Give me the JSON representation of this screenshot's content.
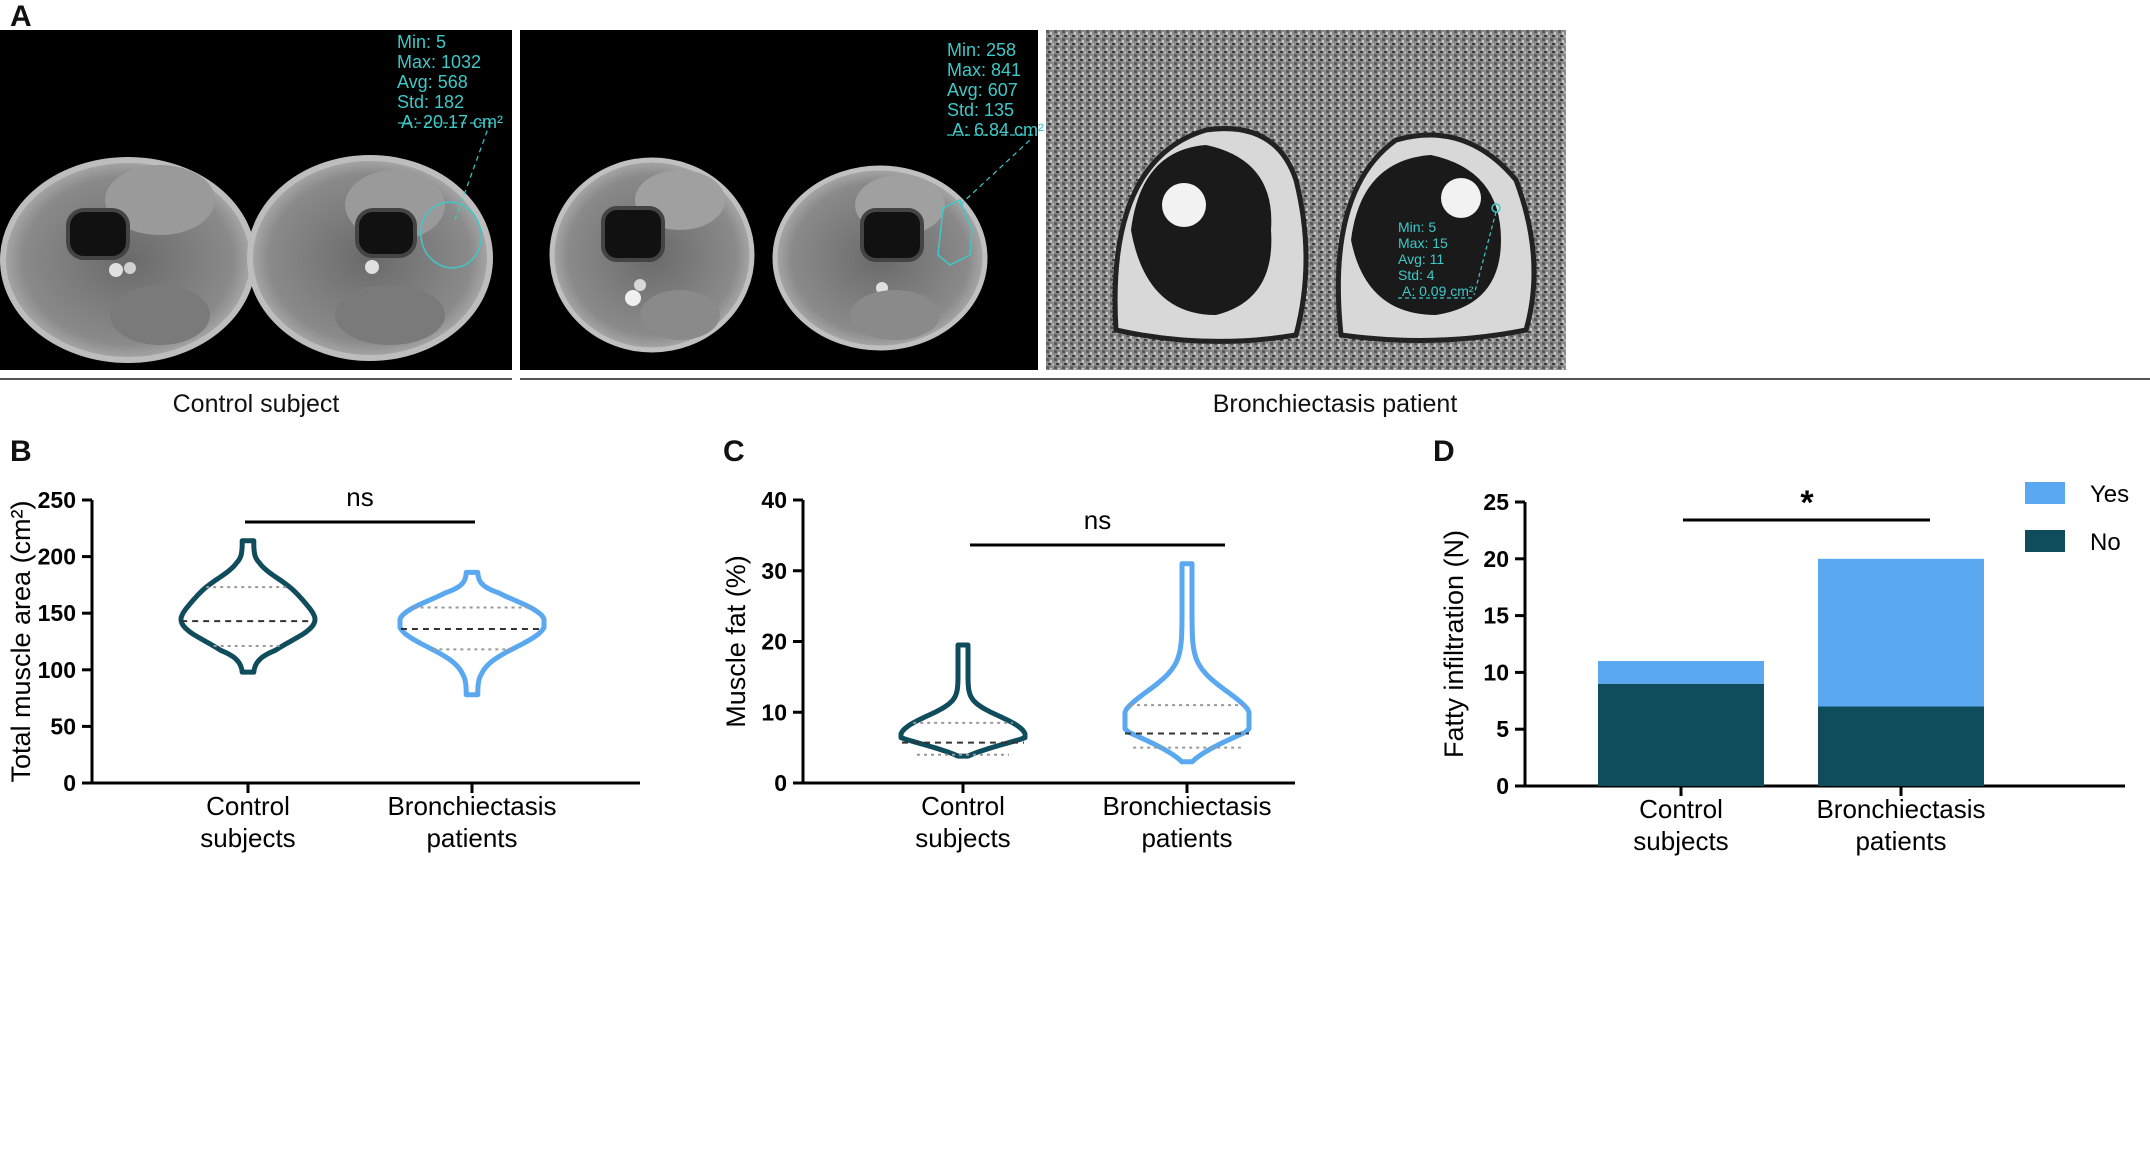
{
  "panel_a": {
    "letter": "A",
    "images": [
      {
        "roi": [
          "Min: 5",
          "Max: 1032",
          "Avg: 568",
          "Std: 182",
          "A: 20.17 cm²"
        ]
      },
      {
        "roi": [
          "Min: 258",
          "Max: 841",
          "Avg: 607",
          "Std: 135",
          "A: 6.84 cm²"
        ]
      },
      {
        "roi": [
          "Min: 5",
          "Max: 15",
          "Avg: 11",
          "Std: 4",
          "A: 0.09 cm²"
        ]
      }
    ],
    "group_labels": [
      "Control subject",
      "Bronchiectasis patient"
    ]
  },
  "panel_b": {
    "letter": "B",
    "significance": "ns",
    "chart_data": {
      "type": "violin",
      "ylabel": "Total muscle area (cm²)",
      "ylim": [
        0,
        250
      ],
      "yticks": [
        0,
        50,
        100,
        150,
        200,
        250
      ],
      "categories": [
        "Control\nsubjects",
        "Bronchiectasis\npatients"
      ],
      "category_lines": [
        [
          "Control",
          "subjects"
        ],
        [
          "Bronchiectasis",
          "patients"
        ]
      ],
      "series": [
        {
          "min": 98,
          "max": 214,
          "q1": 121,
          "median": 143,
          "q3": 173,
          "color": "#0f4c5c"
        },
        {
          "min": 78,
          "max": 186,
          "q1": 118,
          "median": 136,
          "q3": 155,
          "color": "#5aa8f0"
        }
      ]
    }
  },
  "panel_c": {
    "letter": "C",
    "significance": "ns",
    "chart_data": {
      "type": "violin",
      "ylabel": "Muscle fat (%)",
      "ylim": [
        0,
        40
      ],
      "yticks": [
        0,
        10,
        20,
        30,
        40
      ],
      "categories": [
        "Control\nsubjects",
        "Bronchiectasis\npatients"
      ],
      "category_lines": [
        [
          "Control",
          "subjects"
        ],
        [
          "Bronchiectasis",
          "patients"
        ]
      ],
      "series": [
        {
          "min": 3.8,
          "max": 19.5,
          "q1": 4.0,
          "median": 5.7,
          "q3": 8.5,
          "color": "#0f4c5c"
        },
        {
          "min": 3.0,
          "max": 31.0,
          "q1": 5.0,
          "median": 7.0,
          "q3": 11.0,
          "color": "#5aa8f0"
        }
      ]
    }
  },
  "panel_d": {
    "letter": "D",
    "significance": "*",
    "chart_data": {
      "type": "bar",
      "stacked": true,
      "ylabel": "Fatty infiltration (N)",
      "ylim": [
        0,
        25
      ],
      "yticks": [
        0,
        5,
        10,
        15,
        20,
        25
      ],
      "categories": [
        "Control\nsubjects",
        "Bronchiectasis\npatients"
      ],
      "category_lines": [
        [
          "Control",
          "subjects"
        ],
        [
          "Bronchiectasis",
          "patients"
        ]
      ],
      "series": [
        {
          "name": "No",
          "values": [
            9,
            7
          ],
          "color": "#0f4c5c"
        },
        {
          "name": "Yes",
          "values": [
            2,
            13
          ],
          "color": "#5aa8f0"
        }
      ],
      "legend": "top-right"
    }
  }
}
